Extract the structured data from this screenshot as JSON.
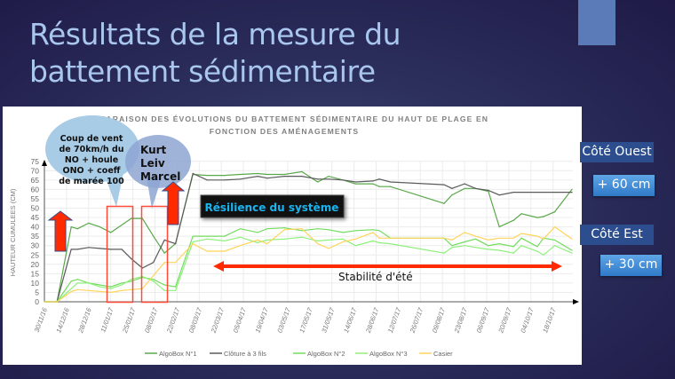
{
  "slide": {
    "title_line1": "Résultats de la mesure du",
    "title_line2": "battement sédimentaire",
    "side": {
      "west_label": "Côté Ouest",
      "west_value": "+ 60 cm",
      "east_label": "Côté Est",
      "east_value": "+ 30 cm"
    },
    "annotations": {
      "storm_lines": [
        "Coup de vent",
        "de 70km/h du",
        "NO + houle",
        "ONO + coeff",
        "de marée 100"
      ],
      "storm_names": [
        "Kurt",
        "Leiv",
        "Marcel"
      ],
      "resilience": "Résilience du système",
      "summer": "Stabilité d'été"
    },
    "colors": {
      "arrow": "#ff2a00",
      "highlight_box": "#ff4a3a",
      "resilience_text": "#19b4ef",
      "bubble1": "#a8cbe6",
      "bubble2": "#8ea6d2"
    }
  },
  "chart_data": {
    "type": "line",
    "title_line1": "COMPARAISON DES ÉVOLUTIONS DU BATTEMENT SÉDIMENTAIRE DU HAUT DE PLAGE EN",
    "title_line2": "FONCTION DES AMÉNAGEMENTS",
    "ylabel": "HAUTEUR CUMULEES (CM)",
    "xlabel": "",
    "ylim": [
      0,
      75
    ],
    "y_ticks": [
      "0",
      "5",
      "10",
      "15",
      "20",
      "25",
      "30",
      "35",
      "40",
      "45",
      "50",
      "55",
      "60",
      "65",
      "70",
      "75"
    ],
    "x_ticks": [
      "30/11/16",
      "14/12/16",
      "28/12/16",
      "11/01/17",
      "25/01/17",
      "08/02/17",
      "22/02/17",
      "08/03/17",
      "22/03/17",
      "05/04/17",
      "19/04/17",
      "03/05/17",
      "17/05/17",
      "31/05/17",
      "14/06/17",
      "28/06/17",
      "12/07/17",
      "26/07/17",
      "09/08/17",
      "23/08/17",
      "06/09/17",
      "20/09/17",
      "04/10/17",
      "18/10/17"
    ],
    "grid": true,
    "legend_position": "bottom",
    "x": [
      "30/11/16",
      "08/12/16",
      "17/12/16",
      "21/12/16",
      "28/12/16",
      "04/01/17",
      "11/01/17",
      "18/01/17",
      "24/01/17",
      "31/01/17",
      "07/02/17",
      "14/02/17",
      "21/02/17",
      "04/03/17",
      "13/03/17",
      "24/03/17",
      "03/04/17",
      "14/04/17",
      "20/04/17",
      "01/05/17",
      "12/05/17",
      "22/05/17",
      "29/05/17",
      "07/06/17",
      "15/06/17",
      "26/06/17",
      "30/06/17",
      "07/07/17",
      "10/08/17",
      "15/08/17",
      "23/08/17",
      "30/08/17",
      "07/09/17",
      "14/09/17",
      "23/09/17",
      "28/09/17",
      "08/10/17",
      "12/10/17",
      "19/10/17",
      "30/10/17"
    ],
    "series": [
      {
        "name": "AlgoBox N°1",
        "color": "#5aa84a",
        "values": [
          0,
          0,
          40,
          39,
          42,
          40,
          37,
          41,
          44.5,
          44.5,
          35,
          26,
          31,
          68,
          67.5,
          67.5,
          68,
          68.5,
          68,
          68,
          69.5,
          64,
          67,
          65,
          63,
          63,
          61.5,
          61.5,
          52.5,
          57,
          60.5,
          60.5,
          59,
          40,
          43.5,
          47,
          45,
          45.5,
          48,
          60
        ]
      },
      {
        "name": "Clôture à 3 fils",
        "color": "#5a5a5a",
        "values": [
          0,
          0,
          28,
          28,
          29,
          28.5,
          28,
          28,
          23,
          18,
          21,
          33,
          31,
          68.5,
          65,
          65,
          65.5,
          67,
          66,
          67,
          67,
          65.5,
          65.5,
          65,
          64,
          64.5,
          65.5,
          64,
          62.5,
          60.5,
          63,
          60.5,
          59.5,
          57,
          58.5,
          58.5,
          58.5,
          58.5,
          58.5,
          58.5
        ]
      },
      {
        "name": "AlgoBox N°2",
        "color": "#72dc5e",
        "values": [
          0,
          0,
          11,
          12,
          10,
          9,
          8,
          10,
          11,
          13,
          12,
          9,
          8,
          35,
          35,
          35,
          39,
          37,
          39,
          39.5,
          38,
          39,
          38.5,
          37,
          38,
          38.5,
          38,
          34,
          34,
          30,
          32,
          33.5,
          30,
          31,
          29.5,
          34,
          29.5,
          34,
          33,
          27.5
        ]
      },
      {
        "name": "AlgoBox N°3",
        "color": "#8ff07c",
        "values": [
          0,
          0,
          7,
          10,
          10,
          8,
          7,
          9,
          12,
          13.5,
          11,
          6,
          6,
          32,
          33.5,
          32.5,
          34.5,
          31.5,
          33,
          33.5,
          34.5,
          32.5,
          33,
          33.5,
          30,
          32.5,
          31.5,
          31,
          26,
          29,
          30,
          29,
          28,
          27.5,
          26,
          30,
          27,
          25,
          30,
          26
        ]
      },
      {
        "name": "Casier",
        "color": "#ffd45a",
        "values": [
          0,
          0,
          5.5,
          6.5,
          6,
          5.5,
          5,
          6,
          6.5,
          7,
          14,
          21,
          21,
          31,
          27,
          27,
          30,
          33,
          31,
          38.5,
          39,
          31,
          28.5,
          32,
          33.5,
          37,
          34,
          34,
          34,
          33,
          37,
          35,
          33,
          34,
          34,
          36.5,
          35,
          33.5,
          40,
          33.5
        ]
      }
    ]
  }
}
